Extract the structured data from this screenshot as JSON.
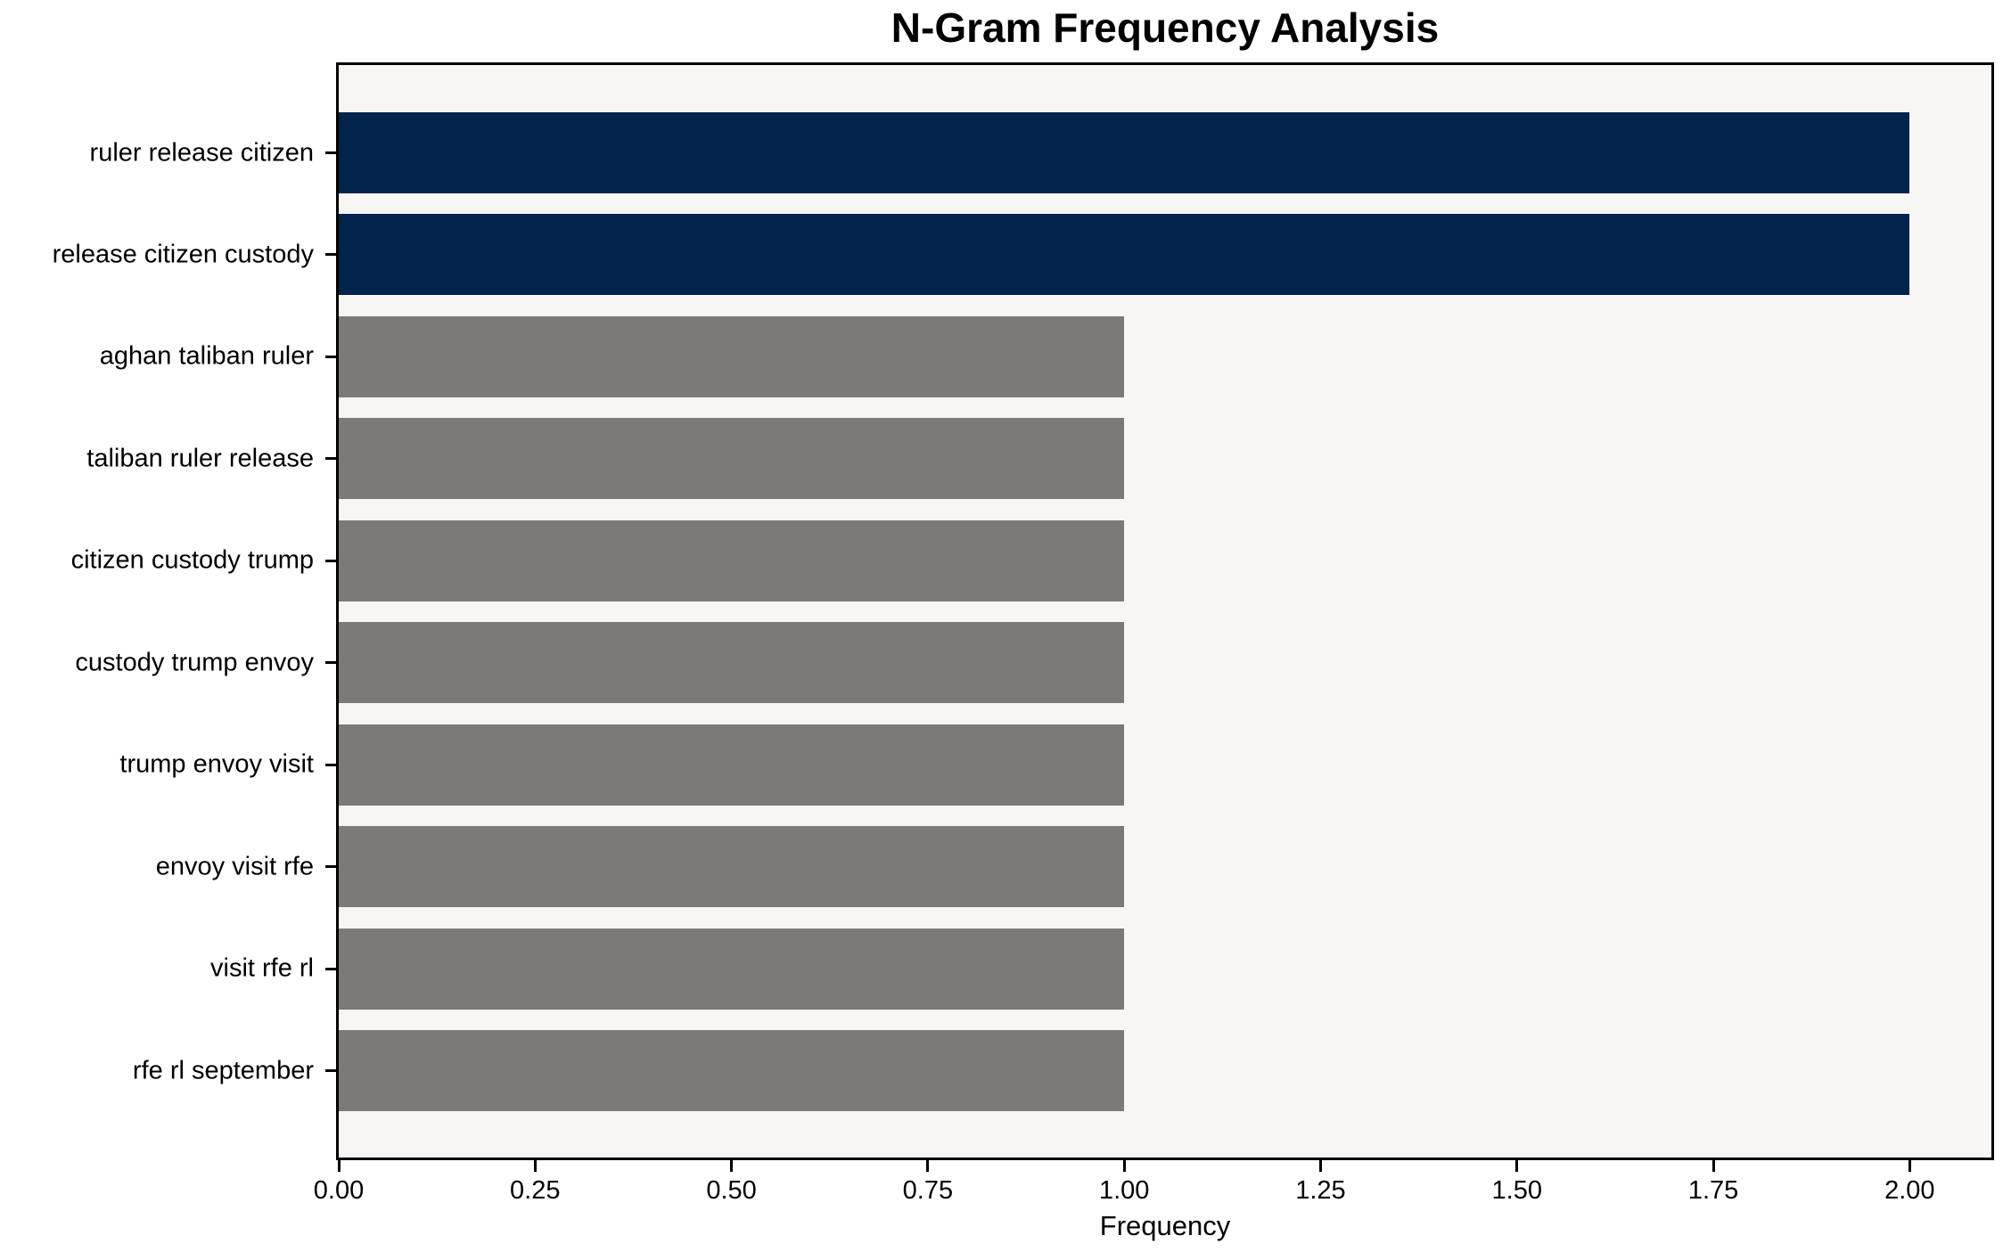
{
  "chart_data": {
    "type": "bar",
    "orientation": "horizontal",
    "title": "N-Gram Frequency Analysis",
    "xlabel": "Frequency",
    "ylabel": "",
    "categories": [
      "ruler release citizen",
      "release citizen custody",
      "aghan taliban ruler",
      "taliban ruler release",
      "citizen custody trump",
      "custody trump envoy",
      "trump envoy visit",
      "envoy visit rfe",
      "visit rfe rl",
      "rfe rl september"
    ],
    "values": [
      2,
      2,
      1,
      1,
      1,
      1,
      1,
      1,
      1,
      1
    ],
    "bar_colors": [
      "#02234c",
      "#02234c",
      "#7b7a76",
      "#7b7a76",
      "#7b7a76",
      "#7b7a76",
      "#7b7a76",
      "#7b7a76",
      "#7b7a76",
      "#7b7a76"
    ],
    "xlim": [
      0,
      2.104
    ],
    "xticks": [
      0,
      0.25,
      0.5,
      0.75,
      1,
      1.25,
      1.5,
      1.75,
      2
    ],
    "xtick_labels": [
      "0.00",
      "0.25",
      "0.50",
      "0.75",
      "1.00",
      "1.25",
      "1.50",
      "1.75",
      "2.00"
    ],
    "grid": false,
    "legend": null,
    "colors": {
      "highlight_bar": "#02234c",
      "default_bar": "#7b7a76",
      "plot_background": "#f7f6f5",
      "figure_background": "#ffffff",
      "axis": "#000000",
      "text": "#000000"
    }
  }
}
